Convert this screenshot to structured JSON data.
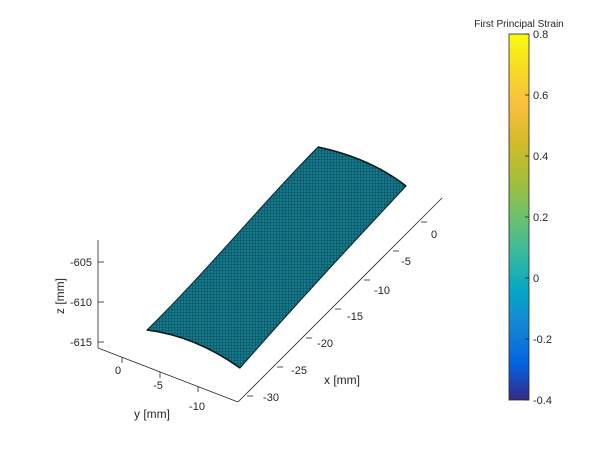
{
  "chart_data": {
    "type": "surface",
    "title": "",
    "xlabel": "x [mm]",
    "ylabel": "y [mm]",
    "zlabel": "z [mm]",
    "x_ticks": [
      "0",
      "-5",
      "-10",
      "-15",
      "-20",
      "-25",
      "-30"
    ],
    "y_ticks": [
      "0",
      "-5",
      "-10"
    ],
    "z_ticks": [
      "-605",
      "-610",
      "-615"
    ],
    "xlim": [
      -33,
      2
    ],
    "ylim": [
      -12,
      2
    ],
    "zlim": [
      -615,
      -602
    ],
    "surface": {
      "description_value": 0,
      "color": "#117a8b",
      "edge_color": "#0d2430",
      "x_range": [
        -30,
        0
      ],
      "y_range": [
        -9,
        0
      ]
    },
    "colorbar": {
      "title": "First Principal Strain",
      "range": [
        -0.4,
        0.8
      ],
      "ticks": [
        "0.8",
        "0.6",
        "0.4",
        "0.2",
        "0",
        "-0.2",
        "-0.4"
      ],
      "colormap": "parula"
    }
  }
}
